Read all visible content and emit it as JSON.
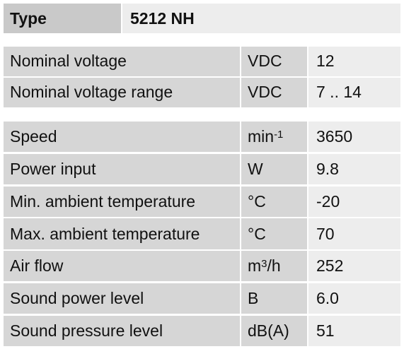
{
  "header": {
    "label": "Type",
    "value": "5212 NH"
  },
  "groups": [
    {
      "rows": [
        {
          "label": "Nominal voltage",
          "unit": {
            "base": "VDC"
          },
          "value": "12"
        },
        {
          "label": "Nominal voltage range",
          "unit": {
            "base": "VDC"
          },
          "value": "7 .. 14"
        }
      ]
    },
    {
      "rows": [
        {
          "label": "Speed",
          "unit": {
            "base": "min",
            "sup": "-1"
          },
          "value": "3650"
        },
        {
          "label": "Power input",
          "unit": {
            "base": "W"
          },
          "value": "9.8"
        },
        {
          "label": "Min. ambient temperature",
          "unit": {
            "base": "°C"
          },
          "value": "-20"
        },
        {
          "label": "Max. ambient temperature",
          "unit": {
            "base": "°C"
          },
          "value": "70"
        },
        {
          "label": "Air flow",
          "unit": {
            "base": "m",
            "sup": "3",
            "after": "/h"
          },
          "value": "252"
        },
        {
          "label": "Sound power level",
          "unit": {
            "base": "B"
          },
          "value": "6.0"
        },
        {
          "label": "Sound pressure level",
          "unit": {
            "base": "dB(A)"
          },
          "value": "51"
        }
      ]
    }
  ]
}
